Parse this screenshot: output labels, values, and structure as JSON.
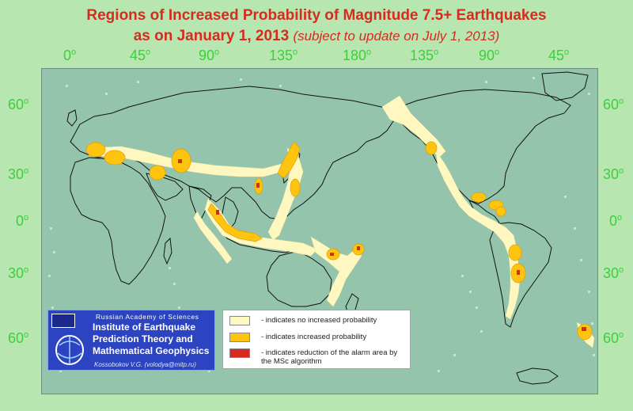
{
  "title": {
    "line1": "Regions of Increased Probability of Magnitude 7.5+ Earthquakes",
    "line2_main": "as on January 1, 2013",
    "line2_note": "(subject to update on July 1, 2013)"
  },
  "longitude_labels": [
    "0",
    "45",
    "90",
    "135",
    "180",
    "135",
    "90",
    "45"
  ],
  "latitude_labels": [
    "60",
    "30",
    "0",
    "30",
    "60"
  ],
  "degree_symbol": "o",
  "legend": {
    "items": [
      {
        "text": "- indicates no increased probability",
        "color": "#fff7c0"
      },
      {
        "text": "- indicates increased probability",
        "color": "#ffc410"
      },
      {
        "text": "- indicates reduction of the alarm area by the MSc algorithm",
        "color": "#d62a1f"
      }
    ]
  },
  "logo": {
    "academy": "Russian Academy of Sciences",
    "institute_line1": "Institute of Earthquake",
    "institute_line2": "Prediction Theory and",
    "institute_line3": "Mathematical Geophysics",
    "author": "Kossobokov V.G. (volodya@mitp.ru)"
  },
  "colors": {
    "map_background": "#94c5ac",
    "page_background": "#b8e6b1",
    "no_increase": "#fff7c0",
    "increased": "#ffc410",
    "reduced": "#d62a1f",
    "title": "#d62b1f",
    "ticks": "#3ccf3c"
  }
}
